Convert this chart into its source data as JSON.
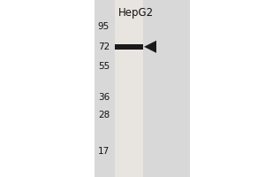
{
  "bg_color": "#ffffff",
  "outer_bg": "#c8c8c8",
  "gel_bg": "#d8d8d8",
  "lane_color": "#e8e5e0",
  "band_color": "#1a1a1a",
  "arrow_color": "#1a1a1a",
  "col_label": "HepG2",
  "mw_markers": [
    95,
    72,
    55,
    36,
    28,
    17
  ],
  "band_mw": 72,
  "fig_width": 3.0,
  "fig_height": 2.0,
  "dpi": 100,
  "label_fontsize": 7.5,
  "col_label_fontsize": 8.5
}
